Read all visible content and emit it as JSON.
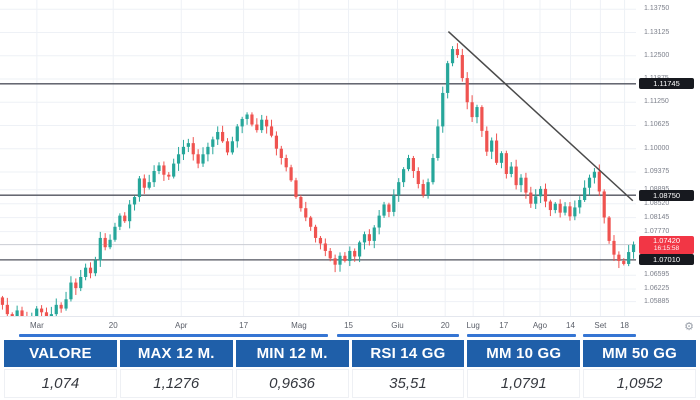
{
  "chart_data": {
    "type": "candlestick",
    "title": "",
    "xlabel": "",
    "ylabel": "",
    "legend": null,
    "grid": true,
    "price_domain": {
      "min": 1.055,
      "max": 1.14
    },
    "y_ticks": [
      {
        "label": "1.13750",
        "price": 1.1375
      },
      {
        "label": "1.13125",
        "price": 1.13125
      },
      {
        "label": "1.12500",
        "price": 1.125
      },
      {
        "label": "1.11875",
        "price": 1.11875
      },
      {
        "label": "1.11250",
        "price": 1.1125
      },
      {
        "label": "1.10625",
        "price": 1.10625
      },
      {
        "label": "1.10000",
        "price": 1.1
      },
      {
        "label": "1.09375",
        "price": 1.09375
      },
      {
        "label": "1.08895",
        "price": 1.08895
      },
      {
        "label": "1.08520",
        "price": 1.0852
      },
      {
        "label": "1.08145",
        "price": 1.08145
      },
      {
        "label": "1.07770",
        "price": 1.0777
      },
      {
        "label": "1.06595",
        "price": 1.06595
      },
      {
        "label": "1.06225",
        "price": 1.06225
      },
      {
        "label": "1.05885",
        "price": 1.05885
      }
    ],
    "x_labels": [
      {
        "label": "Mar",
        "f": 0.058
      },
      {
        "label": "20",
        "f": 0.178
      },
      {
        "label": "Apr",
        "f": 0.285
      },
      {
        "label": "17",
        "f": 0.383
      },
      {
        "label": "Mag",
        "f": 0.47
      },
      {
        "label": "15",
        "f": 0.548
      },
      {
        "label": "Giu",
        "f": 0.625
      },
      {
        "label": "20",
        "f": 0.7
      },
      {
        "label": "Lug",
        "f": 0.744
      },
      {
        "label": "17",
        "f": 0.792
      },
      {
        "label": "Ago",
        "f": 0.849
      },
      {
        "label": "14",
        "f": 0.897
      },
      {
        "label": "Set",
        "f": 0.944
      },
      {
        "label": "18",
        "f": 0.982
      }
    ],
    "h_lines": [
      {
        "price": 1.11745,
        "label": "1.11745"
      },
      {
        "price": 1.0875,
        "label": "1.08750"
      },
      {
        "price": 1.0701,
        "label": "1.07010"
      }
    ],
    "price_line": {
      "price": 1.0742,
      "label": "1.07420",
      "countdown": "16:15:58"
    },
    "trendline": {
      "f1": 0.705,
      "p1": 1.1315,
      "f2": 0.995,
      "p2": 1.086
    },
    "candles": {
      "first_open": 1.06,
      "closes": [
        1.058,
        1.0555,
        1.0545,
        1.0565,
        1.055,
        1.0535,
        1.0545,
        1.057,
        1.056,
        1.0548,
        1.0555,
        1.058,
        1.057,
        1.0595,
        1.064,
        1.0625,
        1.0655,
        1.068,
        1.0665,
        1.07,
        1.076,
        1.0735,
        1.0755,
        1.079,
        1.082,
        1.0805,
        1.085,
        1.087,
        1.092,
        1.0895,
        1.091,
        1.094,
        1.0955,
        1.093,
        1.0925,
        1.096,
        1.0985,
        1.1005,
        1.1015,
        1.0985,
        1.096,
        1.0985,
        1.1005,
        1.1025,
        1.1045,
        1.102,
        1.099,
        1.102,
        1.106,
        1.108,
        1.1092,
        1.1065,
        1.105,
        1.1078,
        1.106,
        1.1035,
        1.1,
        1.0975,
        1.095,
        1.0915,
        1.087,
        1.084,
        1.0815,
        1.079,
        1.076,
        1.0745,
        1.0725,
        1.0705,
        1.0688,
        1.0712,
        1.0698,
        1.0725,
        1.071,
        1.0748,
        1.077,
        1.0752,
        1.0788,
        1.082,
        1.085,
        1.083,
        1.0875,
        1.091,
        1.0945,
        1.0975,
        1.094,
        1.0905,
        1.0875,
        1.091,
        1.0975,
        1.106,
        1.115,
        1.123,
        1.1268,
        1.1252,
        1.119,
        1.1125,
        1.1085,
        1.1112,
        1.1048,
        1.0992,
        1.1022,
        1.0962,
        1.0988,
        1.0932,
        1.0952,
        1.0902,
        1.0922,
        1.0882,
        1.0852,
        1.0872,
        1.0892,
        1.0858,
        1.0835,
        1.0852,
        1.0828,
        1.0845,
        1.0818,
        1.0842,
        1.0862,
        1.0895,
        1.0922,
        1.0938,
        1.0885,
        1.0815,
        1.0752,
        1.0715,
        1.0698,
        1.069,
        1.0722,
        1.0742
      ],
      "wick_overrides": {
        "5": {
          "low": 1.0515
        },
        "50": {
          "high": 1.1098
        },
        "68": {
          "low": 1.0668
        },
        "92": {
          "high": 1.1276
        },
        "121": {
          "high": 1.0948
        },
        "127": {
          "low": 1.0686
        }
      }
    },
    "axis_bars": [
      [
        0.03,
        0.515
      ],
      [
        0.53,
        0.722
      ],
      [
        0.735,
        0.905
      ],
      [
        0.917,
        1.0
      ]
    ],
    "icons": {
      "settings": "⚙"
    },
    "colors": {
      "up": "#26a69a",
      "down": "#ef5350",
      "trend": "#4a4a4a",
      "level": "#50535e",
      "grid": "#eef1f6",
      "axis_text": "#7b7f8a",
      "badge_dark": "#17191f",
      "badge_red": "#f23645",
      "blue_bar": "#3575d3",
      "price_line": "#c9ccd3"
    }
  },
  "table": {
    "header_bg": "#1f5fa9",
    "header_text": "#ffffff",
    "columns": [
      {
        "header": "VALORE",
        "value": "1,074"
      },
      {
        "header": "MAX 12 M.",
        "value": "1,1276"
      },
      {
        "header": "MIN 12 M.",
        "value": "0,9636"
      },
      {
        "header": "RSI 14 GG",
        "value": "35,51"
      },
      {
        "header": "MM 10 GG",
        "value": "1,0791"
      },
      {
        "header": "MM 50 GG",
        "value": "1,0952"
      }
    ]
  }
}
